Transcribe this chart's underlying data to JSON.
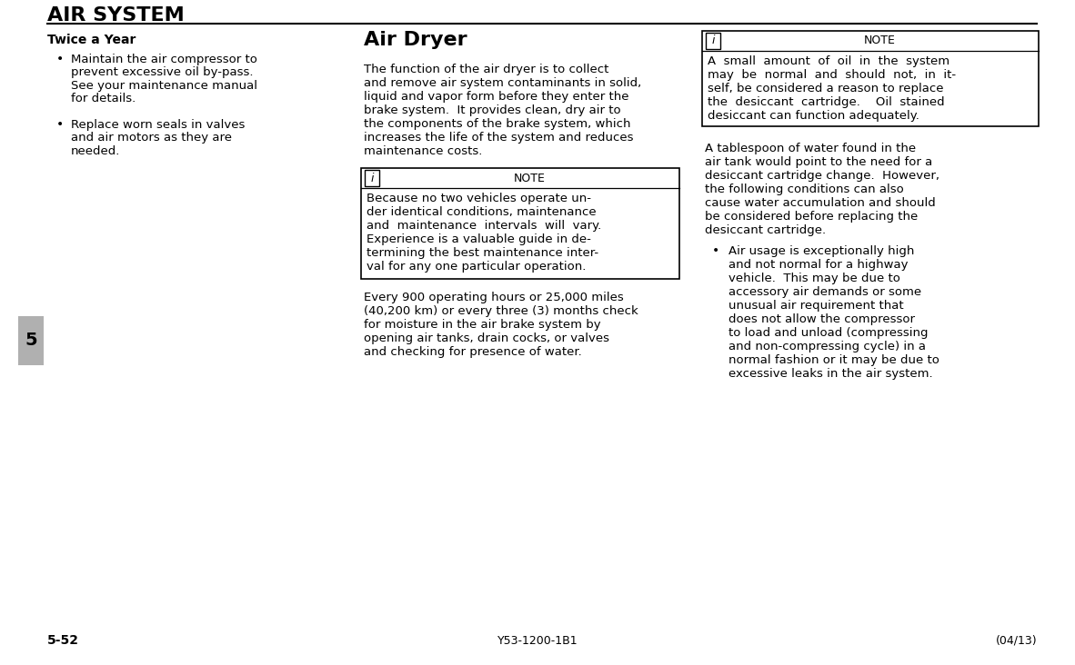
{
  "title": "AIR SYSTEM",
  "section_number": "5",
  "page_number": "5-52",
  "doc_code": "Y53-1200-1B1",
  "date_code": "(04/13)",
  "bg_color": "#ffffff",
  "text_color": "#000000",
  "col1_heading": "Twice a Year",
  "col1_bullets": [
    "Maintain the air compressor to prevent excessive oil by-pass.  See your maintenance manual for details.",
    "Replace worn seals in valves and air motors as they are needed."
  ],
  "col2_heading": "Air Dryer",
  "col2_body": "The function of the air dryer is to collect and remove air system contaminants in solid, liquid and vapor form before they enter the brake system.  It provides clean, dry air to the components of the brake system, which increases the life of the system and reduces maintenance costs.",
  "col2_note_lines": [
    "Because no two vehicles operate un-",
    "der identical conditions, maintenance",
    "and  maintenance  intervals  will  vary.",
    "Experience is a valuable guide in de-",
    "termining the best maintenance inter-",
    "val for any one particular operation."
  ],
  "col2_body2": "Every 900 operating hours or 25,000 miles (40,200 km) or every three (3) months check for moisture in the air brake system by opening air tanks, drain cocks, or valves and checking for presence of water.",
  "col3_note_lines": [
    "A  small  amount  of  oil  in  the  system",
    "may  be  normal  and  should  not,  in  it-",
    "self, be considered a reason to replace",
    "the  desiccant  cartridge.    Oil  stained",
    "desiccant can function adequately."
  ],
  "col3_body1_lines": [
    "A tablespoon of water found in the",
    "air tank would point to the need for a",
    "desiccant cartridge change.  However,",
    "the following conditions can also",
    "cause water accumulation and should",
    "be considered before replacing the",
    "desiccant cartridge."
  ],
  "col3_bullet_lines": [
    "Air usage is exceptionally high",
    "and not normal for a highway",
    "vehicle.  This may be due to",
    "accessory air demands or some",
    "unusual air requirement that",
    "does not allow the compressor",
    "to load and unload (compressing",
    "and non-compressing cycle) in a",
    "normal fashion or it may be due to",
    "excessive leaks in the air system."
  ]
}
